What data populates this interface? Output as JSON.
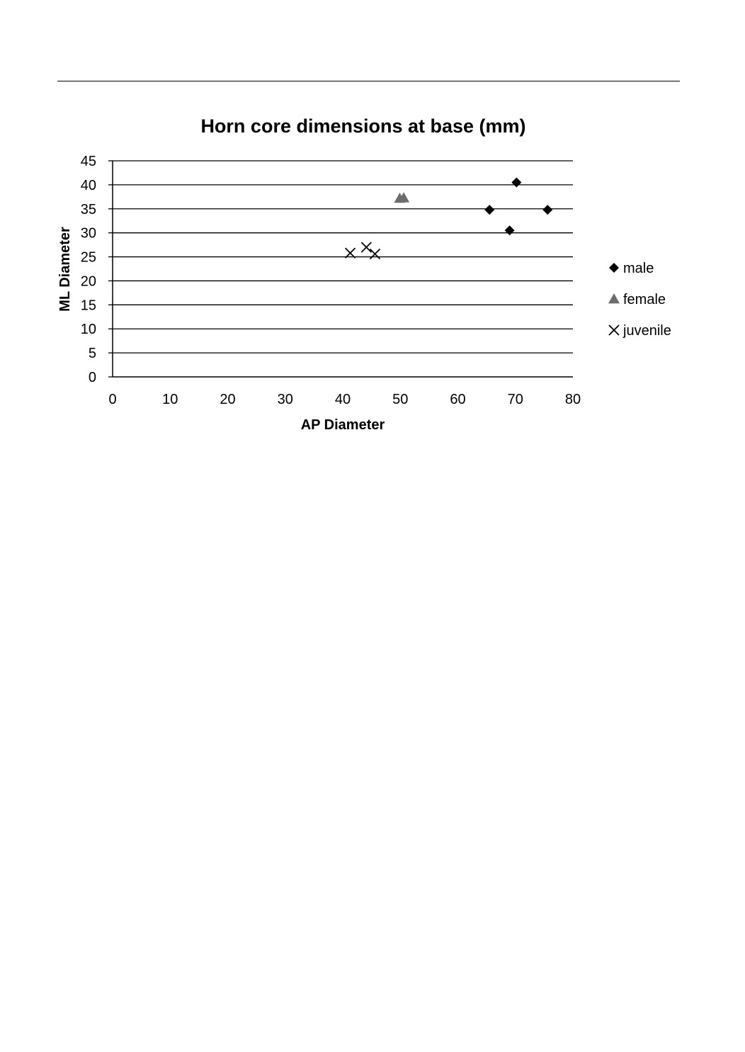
{
  "chart_data": {
    "type": "scatter",
    "title": "Horn core dimensions at base (mm)",
    "xlabel": "AP Diameter",
    "ylabel": "ML Diameter",
    "xlim": [
      0,
      80
    ],
    "ylim": [
      0,
      45
    ],
    "x_ticks": [
      0,
      10,
      20,
      30,
      40,
      50,
      60,
      70,
      80
    ],
    "y_ticks": [
      0,
      5,
      10,
      15,
      20,
      25,
      30,
      35,
      40,
      45
    ],
    "grid": "horizontal",
    "legend_position": "right",
    "series": [
      {
        "name": "male",
        "marker": "diamond",
        "color": "#000000",
        "points": [
          [
            70.2,
            40.5
          ],
          [
            65.5,
            34.8
          ],
          [
            75.6,
            34.8
          ],
          [
            69.0,
            30.5
          ]
        ]
      },
      {
        "name": "female",
        "marker": "triangle",
        "color": "#6d6d6d",
        "points": [
          [
            49.9,
            37.2
          ],
          [
            50.6,
            37.3
          ]
        ]
      },
      {
        "name": "juvenile",
        "marker": "x",
        "color": "#000000",
        "points": [
          [
            41.3,
            25.8
          ],
          [
            44.1,
            27.0
          ],
          [
            45.6,
            25.6
          ]
        ]
      }
    ]
  }
}
